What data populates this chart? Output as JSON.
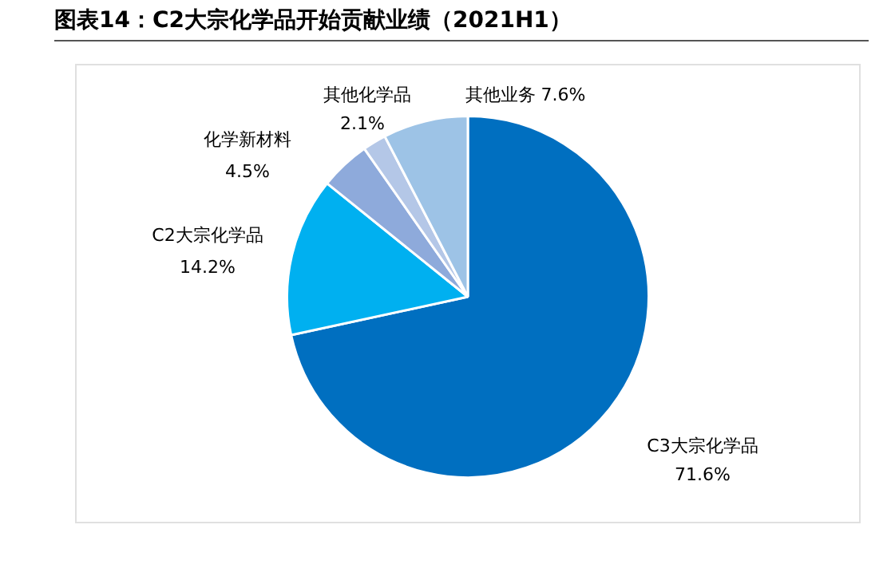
{
  "chart_data": {
    "type": "pie",
    "title": "图表14：C2大宗化学品开始贡献业绩（2021H1）",
    "categories": [
      "C3大宗化学品",
      "C2大宗化学品",
      "化学新材料",
      "其他化学品",
      "其他业务"
    ],
    "values": [
      71.6,
      14.2,
      4.5,
      2.1,
      7.6
    ],
    "value_labels": [
      "71.6%",
      "14.2%",
      "4.5%",
      "2.1%",
      "7.6%"
    ],
    "colors": [
      "#006fc0",
      "#00b0f0",
      "#8eaadb",
      "#b4c7e7",
      "#9dc3e6"
    ],
    "legend": false
  }
}
